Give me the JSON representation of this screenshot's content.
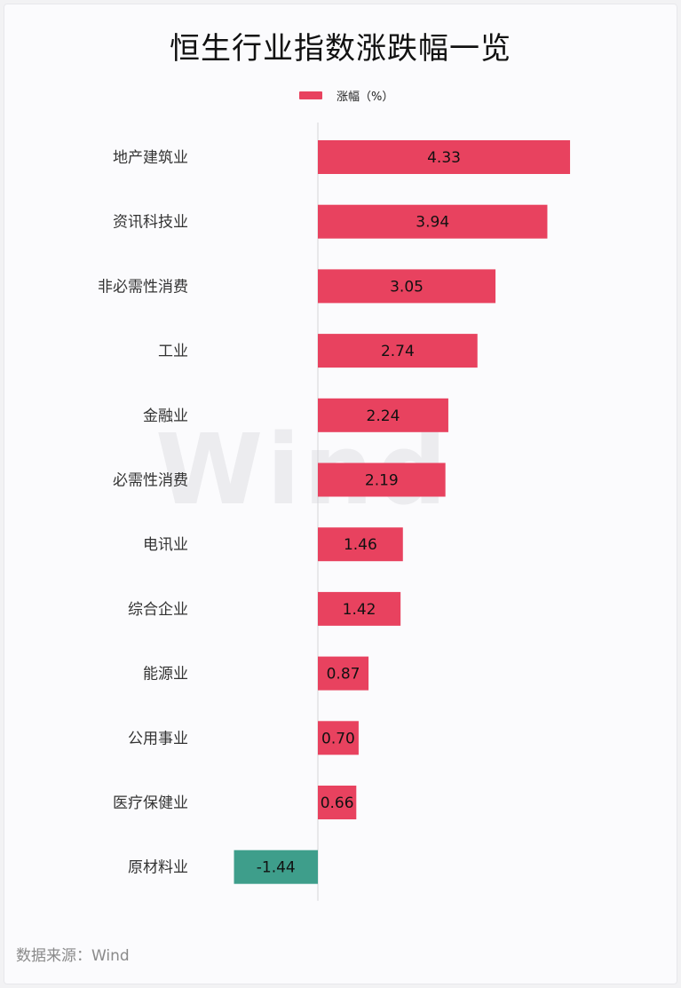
{
  "chart_data": {
    "type": "bar",
    "orientation": "horizontal",
    "title": "恒生行业指数涨跌幅一览",
    "legend": {
      "label": "涨幅（%）",
      "position": "top"
    },
    "categories": [
      "地产建筑业",
      "资讯科技业",
      "非必需性消费",
      "工业",
      "金融业",
      "必需性消费",
      "电讯业",
      "综合企业",
      "能源业",
      "公用事业",
      "医疗保健业",
      "原材料业"
    ],
    "series": [
      {
        "name": "涨幅（%）",
        "values": [
          4.33,
          3.94,
          3.05,
          2.74,
          2.24,
          2.19,
          1.46,
          1.42,
          0.87,
          0.7,
          0.66,
          -1.44
        ]
      }
    ],
    "value_labels": [
      "4.33",
      "3.94",
      "3.05",
      "2.74",
      "2.24",
      "2.19",
      "1.46",
      "1.42",
      "0.87",
      "0.70",
      "0.66",
      "-1.44"
    ],
    "colors": {
      "positive": "#e8425f",
      "negative": "#3e9e8b"
    },
    "grid": false
  },
  "watermark": "Wind",
  "source": "数据来源：Wind"
}
